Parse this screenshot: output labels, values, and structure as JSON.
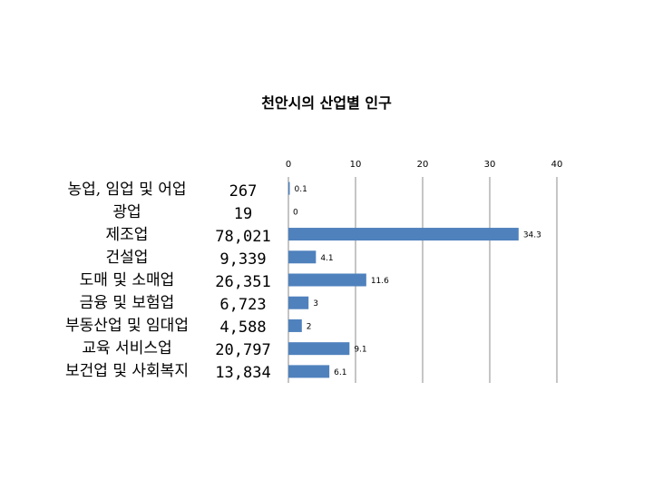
{
  "chart_data": {
    "type": "bar",
    "orientation": "horizontal",
    "title": "천안시의 산업별 인구",
    "categories": [
      "농업, 임업 및 어업",
      "광업",
      "제조업",
      "건설업",
      "도매 및 소매업",
      "금융 및 보험업",
      "부동산업 및 임대업",
      "교육 서비스업",
      "보건업 및 사회복지"
    ],
    "populations": [
      "267",
      "19",
      "78,021",
      "9,339",
      "26,351",
      "6,723",
      "4,588",
      "20,797",
      "13,834"
    ],
    "values": [
      0.1,
      0,
      34.3,
      4.1,
      11.6,
      3,
      2,
      9.1,
      6.1
    ],
    "xticks": [
      0,
      10,
      20,
      30,
      40
    ],
    "xlim": [
      0,
      40
    ],
    "xaxis_position": "top",
    "grid": true,
    "bar_color": "#4f81bd"
  }
}
